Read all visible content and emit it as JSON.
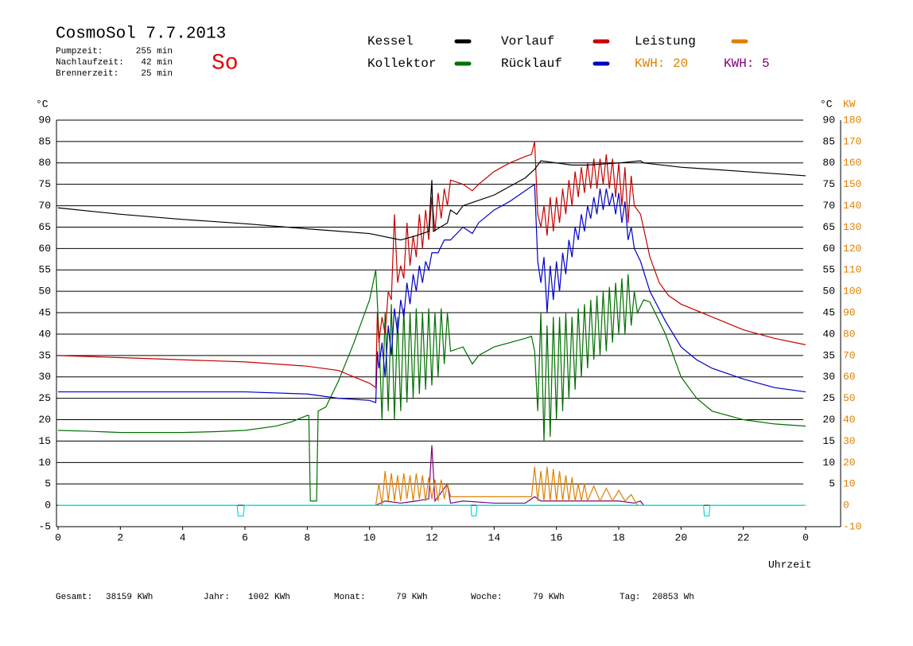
{
  "chart_data": {
    "type": "line",
    "title": "CosmoSol 7.7.2013",
    "day": "So",
    "info": [
      [
        "Pumpzeit:",
        "255 min"
      ],
      [
        "Nachlaufzeit:",
        "42 min"
      ],
      [
        "Brennerzeit:",
        "25 min"
      ]
    ],
    "kwh_labels": [
      {
        "text": "KWH: 20",
        "color": "#e08000"
      },
      {
        "text": "KWH: 5",
        "color": "#800080"
      }
    ],
    "footer": [
      [
        "Gesamt:",
        "38159 KWh"
      ],
      [
        "Jahr:",
        "1002 KWh"
      ],
      [
        "Monat:",
        "79 KWh"
      ],
      [
        "Woche:",
        "79 KWh"
      ],
      [
        "Tag:",
        "20853 Wh"
      ]
    ],
    "x_label": "Uhrzeit",
    "y_unit": "°C",
    "y2_unit": "KW",
    "xlim": [
      0,
      24
    ],
    "xticks": [
      0,
      2,
      4,
      6,
      8,
      10,
      12,
      14,
      16,
      18,
      20,
      22,
      {
        "value": 24,
        "label": "0"
      }
    ],
    "ylim": [
      -5,
      90
    ],
    "yticks": [
      -5,
      0,
      5,
      10,
      15,
      20,
      25,
      30,
      35,
      40,
      45,
      50,
      55,
      60,
      65,
      70,
      75,
      80,
      85,
      90
    ],
    "yticks_right": [
      5,
      10,
      15,
      20,
      25,
      30,
      35,
      40,
      45,
      50,
      55,
      60,
      65,
      70,
      75,
      80,
      85,
      90
    ],
    "y2lim": [
      -10,
      180
    ],
    "y2ticks": [
      -10,
      0,
      10,
      20,
      30,
      40,
      50,
      60,
      70,
      80,
      90,
      100,
      110,
      120,
      130,
      140,
      150,
      160,
      170,
      180
    ],
    "grid": true,
    "series": [
      {
        "name": "Kessel",
        "color": "#000000",
        "x": [
          0,
          2,
          4,
          6,
          8,
          10,
          11,
          11.5,
          11.9,
          12,
          12.05,
          12.5,
          12.6,
          12.8,
          13,
          14,
          15,
          15.3,
          15.5,
          16,
          16.5,
          17,
          18,
          18.7,
          18.8,
          20,
          22,
          24
        ],
        "values": [
          69.5,
          68,
          66.8,
          65.8,
          64.6,
          63.5,
          62,
          63,
          64,
          76,
          64,
          66,
          69,
          68,
          70,
          72.5,
          76.5,
          78.5,
          80.5,
          80,
          79.5,
          79.5,
          80,
          80.5,
          80,
          79,
          78,
          77
        ]
      },
      {
        "name": "Vorlauf",
        "color": "#c80000",
        "x": [
          0,
          2,
          4,
          6,
          8,
          9,
          10,
          10.2,
          10.25,
          10.3,
          10.4,
          10.5,
          10.6,
          10.7,
          10.8,
          10.9,
          11,
          11.1,
          11.2,
          11.3,
          11.4,
          11.5,
          11.6,
          11.7,
          11.8,
          11.9,
          12,
          12.1,
          12.2,
          12.3,
          12.4,
          12.5,
          12.6,
          13,
          13.3,
          13.5,
          14,
          14.5,
          15,
          15.2,
          15.3,
          15.4,
          15.5,
          15.6,
          15.7,
          15.8,
          15.9,
          16,
          16.1,
          16.2,
          16.3,
          16.4,
          16.5,
          16.6,
          16.7,
          16.8,
          16.9,
          17,
          17.1,
          17.2,
          17.3,
          17.4,
          17.5,
          17.6,
          17.7,
          17.8,
          17.9,
          18,
          18.1,
          18.2,
          18.3,
          18.4,
          18.5,
          18.7,
          19,
          19.3,
          19.6,
          20,
          21,
          22,
          23,
          24
        ],
        "values": [
          35,
          34.5,
          34,
          33.5,
          32.5,
          31.5,
          28.5,
          27.5,
          45,
          38,
          44,
          40,
          50,
          48,
          68,
          52,
          56,
          53,
          66,
          56,
          63,
          58,
          68,
          60,
          69,
          62,
          72,
          64,
          73,
          67,
          74,
          70,
          76,
          75,
          73.5,
          75,
          78,
          80,
          81.5,
          82,
          85,
          68,
          65,
          70,
          63,
          72,
          64,
          72,
          66,
          74,
          68,
          76,
          70,
          78,
          72,
          79,
          73,
          80,
          74,
          81,
          74,
          81,
          75,
          82,
          74,
          81,
          72,
          80,
          70,
          79,
          66,
          77,
          70,
          68,
          58,
          52,
          49,
          47,
          44,
          41,
          39,
          37.5
        ]
      },
      {
        "name": "Leistung",
        "color": "#e08000",
        "axis": "y2",
        "x": [
          10.2,
          10.3,
          10.4,
          10.5,
          10.6,
          10.7,
          10.8,
          10.9,
          11,
          11.1,
          11.2,
          11.3,
          11.4,
          11.5,
          11.6,
          11.7,
          11.8,
          11.9,
          12,
          12.1,
          12.2,
          12.3,
          12.4,
          12.5,
          12.6,
          13,
          14,
          15,
          15.2,
          15.3,
          15.4,
          15.5,
          15.6,
          15.7,
          15.8,
          15.9,
          16,
          16.1,
          16.2,
          16.3,
          16.4,
          16.5,
          16.6,
          16.7,
          16.8,
          16.9,
          17,
          17.2,
          17.4,
          17.6,
          17.8,
          18,
          18.2,
          18.4,
          18.6
        ],
        "values": [
          0,
          10,
          0,
          16,
          2,
          15,
          2,
          14,
          2,
          15,
          3,
          14,
          2,
          15,
          3,
          14,
          2,
          13,
          3,
          12,
          2,
          12,
          3,
          10,
          4,
          4,
          4,
          4,
          4,
          18,
          2,
          16,
          2,
          18,
          2,
          17,
          2,
          16,
          2,
          14,
          2,
          13,
          2,
          10,
          2,
          10,
          2,
          9,
          2,
          8,
          2,
          7,
          2,
          5,
          0
        ]
      },
      {
        "name": "Kollektor",
        "color": "#007000",
        "x": [
          0,
          1,
          2,
          3,
          4,
          5,
          6,
          7,
          7.5,
          8,
          8.05,
          8.1,
          8.3,
          8.35,
          8.6,
          9,
          9.5,
          10,
          10.2,
          10.3,
          10.4,
          10.5,
          10.6,
          10.7,
          10.8,
          10.9,
          11,
          11.1,
          11.2,
          11.3,
          11.4,
          11.5,
          11.6,
          11.7,
          11.8,
          11.9,
          12,
          12.1,
          12.2,
          12.3,
          12.4,
          12.5,
          12.6,
          13,
          13.3,
          13.5,
          14,
          14.5,
          15,
          15.2,
          15.3,
          15.4,
          15.5,
          15.6,
          15.7,
          15.8,
          15.9,
          16,
          16.1,
          16.2,
          16.3,
          16.4,
          16.5,
          16.6,
          16.7,
          16.8,
          16.9,
          17,
          17.1,
          17.2,
          17.3,
          17.4,
          17.5,
          17.6,
          17.7,
          17.8,
          17.9,
          18,
          18.1,
          18.2,
          18.3,
          18.4,
          18.5,
          18.6,
          18.8,
          19,
          19.5,
          20,
          20.5,
          21,
          22,
          23,
          24
        ],
        "values": [
          17.5,
          17.3,
          17,
          17,
          17,
          17.2,
          17.5,
          18.5,
          19.5,
          21,
          21,
          1,
          1,
          22,
          23,
          29,
          38,
          48,
          55,
          40,
          20,
          45,
          22,
          47,
          20,
          44,
          22,
          46,
          24,
          45,
          25,
          46,
          26,
          45,
          27,
          46,
          28,
          45,
          30,
          46,
          33,
          45,
          36,
          37,
          33,
          35,
          37,
          38,
          39,
          39.5,
          36,
          22,
          45,
          15,
          42,
          16,
          44,
          20,
          44,
          22,
          45,
          25,
          44,
          27,
          46,
          30,
          47,
          32,
          48,
          34,
          49,
          35,
          50,
          36,
          51,
          38,
          52,
          40,
          53,
          40,
          54,
          42,
          50,
          45,
          48,
          47.5,
          40,
          30,
          25,
          22,
          20,
          19,
          18.5
        ]
      },
      {
        "name": "Rücklauf",
        "color": "#0000c8",
        "x": [
          0,
          3,
          6,
          8,
          9,
          10,
          10.2,
          10.25,
          10.3,
          10.4,
          10.5,
          10.6,
          10.7,
          10.8,
          10.9,
          11,
          11.1,
          11.2,
          11.3,
          11.4,
          11.5,
          11.6,
          11.7,
          11.8,
          11.9,
          12,
          12.2,
          12.4,
          12.6,
          13,
          13.3,
          13.5,
          14,
          14.5,
          15,
          15.3,
          15.4,
          15.5,
          15.6,
          15.7,
          15.8,
          15.9,
          16,
          16.1,
          16.2,
          16.3,
          16.4,
          16.5,
          16.6,
          16.7,
          16.8,
          16.9,
          17,
          17.1,
          17.2,
          17.3,
          17.4,
          17.5,
          17.6,
          17.7,
          17.8,
          17.9,
          18,
          18.1,
          18.2,
          18.3,
          18.4,
          18.5,
          18.7,
          19,
          19.5,
          20,
          20.5,
          21,
          22,
          23,
          24
        ],
        "values": [
          26.5,
          26.5,
          26.5,
          26,
          25,
          24.5,
          24,
          36,
          32,
          38,
          30,
          42,
          35,
          46,
          40,
          48,
          44,
          52,
          47,
          54,
          50,
          56,
          52,
          57,
          55,
          59,
          59,
          62,
          62,
          65,
          63.5,
          66,
          69,
          71,
          73.5,
          75,
          57,
          52,
          58,
          45,
          56,
          48,
          57,
          50,
          59,
          54,
          62,
          58,
          65,
          62,
          68,
          64,
          70,
          67,
          72,
          68,
          74,
          69,
          74,
          70,
          73,
          68,
          73,
          66,
          71,
          62,
          65,
          60,
          57,
          50,
          43,
          37,
          34,
          32,
          29.5,
          27.5,
          26.5
        ]
      },
      {
        "name": null,
        "color": "#800080",
        "axis": "y2",
        "x": [
          10.2,
          10.5,
          11,
          11.5,
          11.9,
          12,
          12.1,
          12.5,
          12.6,
          13,
          14,
          15,
          15.3,
          15.5,
          16,
          17,
          18,
          18.5,
          18.7,
          18.8
        ],
        "values": [
          0,
          2,
          1,
          2,
          3,
          28,
          2,
          10,
          1,
          2,
          1,
          1,
          4,
          2,
          2,
          2,
          2,
          1,
          2,
          0
        ]
      },
      {
        "name": null,
        "color": "#00dcdc",
        "x": [
          0,
          5.75,
          5.78,
          5.95,
          5.98,
          13.25,
          13.28,
          13.42,
          13.45,
          20.72,
          20.75,
          20.9,
          20.93,
          24
        ],
        "values": [
          0,
          0,
          -2.5,
          -2.5,
          0,
          0,
          -2.5,
          -2.5,
          0,
          0,
          -2.5,
          -2.5,
          0,
          0
        ]
      }
    ]
  }
}
